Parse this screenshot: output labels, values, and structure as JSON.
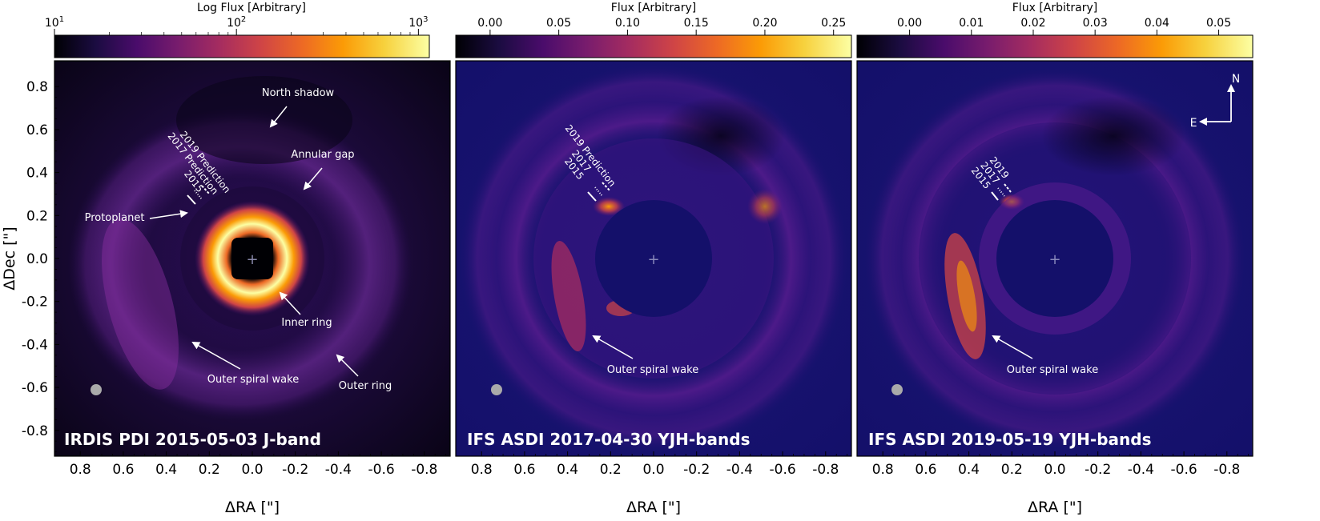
{
  "figure": {
    "y_axis_label": "ΔDec [\"]",
    "x_axis_label": "ΔRA [\"]",
    "y_ticks": [
      "0.8",
      "0.6",
      "0.4",
      "0.2",
      "0.0",
      "-0.2",
      "-0.4",
      "-0.6",
      "-0.8"
    ],
    "x_ticks": [
      "0.8",
      "0.6",
      "0.4",
      "0.2",
      "0.0",
      "-0.2",
      "-0.4",
      "-0.6",
      "-0.8"
    ],
    "compass": {
      "north": "N",
      "east": "E"
    }
  },
  "panels": [
    {
      "id": "irdis",
      "title": "IRDIS PDI 2015-05-03 J-band",
      "colorbar": {
        "label": "Log Flux [Arbitrary]",
        "ticks": [
          "10^1",
          "10^2",
          "10^3"
        ],
        "tick_base": "10",
        "tick_exps": [
          "1",
          "2",
          "3"
        ],
        "scale": "log"
      },
      "annotations": {
        "north_shadow": "North shadow",
        "annular_gap": "Annular gap",
        "protoplanet": "Protoplanet",
        "inner_ring": "Inner ring",
        "outer_spiral_wake": "Outer spiral wake",
        "outer_ring": "Outer ring",
        "pred_2019": "2019 Prediction",
        "pred_2017": "2017 Prediction",
        "epoch_2015": "2015"
      }
    },
    {
      "id": "ifs2017",
      "title": "IFS ASDI 2017-04-30 YJH-bands",
      "colorbar": {
        "label": "Flux [Arbitrary]",
        "ticks": [
          "0.00",
          "0.05",
          "0.10",
          "0.15",
          "0.20",
          "0.25"
        ],
        "scale": "linear"
      },
      "annotations": {
        "pred_2019": "2019 Prediction",
        "epoch_2017": "2017",
        "epoch_2015": "2015",
        "outer_spiral_wake": "Outer spiral wake"
      }
    },
    {
      "id": "ifs2019",
      "title": "IFS ASDI 2019-05-19 YJH-bands",
      "colorbar": {
        "label": "Flux [Arbitrary]",
        "ticks": [
          "0.00",
          "0.01",
          "0.02",
          "0.03",
          "0.04",
          "0.05"
        ],
        "scale": "linear"
      },
      "annotations": {
        "epoch_2019": "2019",
        "epoch_2017": "2017",
        "epoch_2015": "2015",
        "outer_spiral_wake": "Outer spiral wake"
      }
    }
  ],
  "colormap_stops": [
    "#000004",
    "#1b0c41",
    "#4a0c6b",
    "#781c6d",
    "#a52c60",
    "#cf4446",
    "#ed6925",
    "#fb9b06",
    "#f7d13d",
    "#fcffa4"
  ]
}
